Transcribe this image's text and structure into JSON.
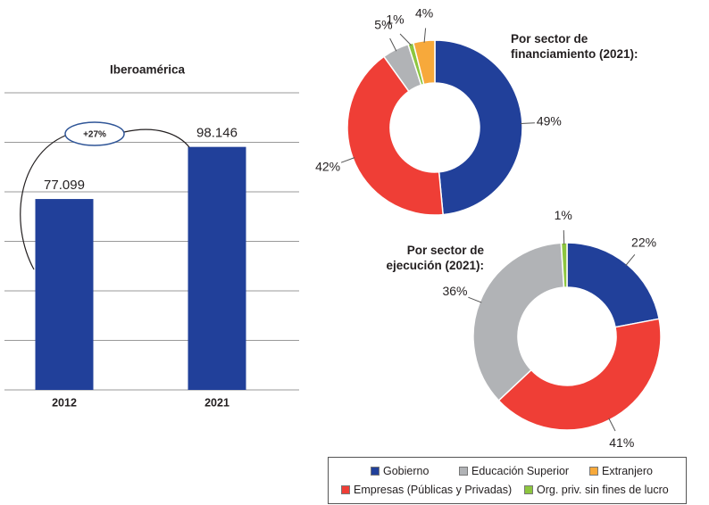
{
  "chart_data": [
    {
      "type": "bar",
      "title": "Iberoamérica",
      "categories": [
        "2012",
        "2021"
      ],
      "values": [
        77.099,
        98.146
      ],
      "color": "#21409a",
      "ylim": [
        0,
        120
      ],
      "yticks": [
        0,
        20,
        40,
        60,
        80,
        100,
        120
      ],
      "grid": true,
      "annotation": "+27%"
    },
    {
      "type": "donut",
      "title": "Por sector de financiamiento (2021):",
      "values": [
        49,
        42,
        5,
        1,
        4
      ],
      "value_labels": [
        "49%",
        "42%",
        "5%",
        "1%",
        "4%"
      ],
      "colors": [
        "#21409a",
        "#ef3e36",
        "#b1b3b6",
        "#8dc63f",
        "#f7a93b"
      ]
    },
    {
      "type": "donut",
      "title": "Por sector de ejecución (2021):",
      "values": [
        22,
        41,
        36,
        1
      ],
      "value_labels": [
        "22%",
        "41%",
        "36%",
        "1%"
      ],
      "colors": [
        "#21409a",
        "#ef3e36",
        "#b1b3b6",
        "#8dc63f"
      ]
    }
  ],
  "legend": [
    {
      "name": "Gobierno",
      "color": "#21409a"
    },
    {
      "name": "Educación Superior",
      "color": "#b1b3b6"
    },
    {
      "name": "Extranjero",
      "color": "#f7a93b"
    },
    {
      "name": "Empresas (Públicas y Privadas)",
      "color": "#ef3e36"
    },
    {
      "name": "Org. priv. sin fines de lucro",
      "color": "#8dc63f"
    }
  ]
}
